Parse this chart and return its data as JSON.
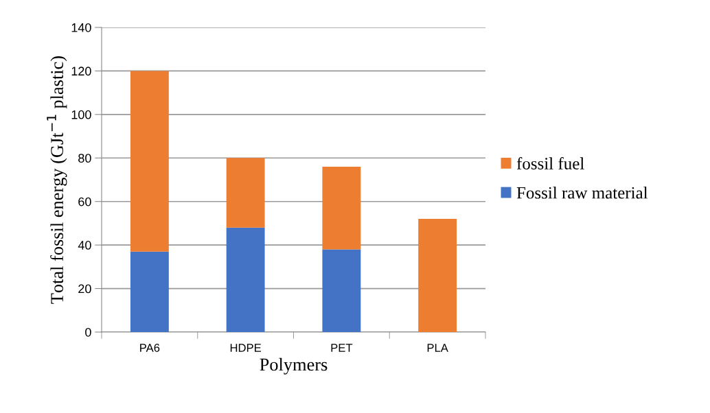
{
  "chart_data": {
    "type": "bar",
    "stacked": true,
    "xlabel": "Polymers",
    "ylabel": "Total fossil energy (GJt$^{−1}$ plastic)",
    "categories": [
      "PA6",
      "HDPE",
      "PET",
      "PLA"
    ],
    "series": [
      {
        "name": "Fossil raw material",
        "color": "#4472c4",
        "values": [
          37,
          48,
          38,
          0
        ]
      },
      {
        "name": "fossil fuel",
        "color": "#ed7d31",
        "values": [
          83,
          32,
          38,
          52
        ]
      }
    ],
    "ylim": [
      0,
      140
    ],
    "yticks": [
      0,
      20,
      40,
      60,
      80,
      100,
      120,
      140
    ],
    "grid": "y",
    "legend": "right"
  }
}
